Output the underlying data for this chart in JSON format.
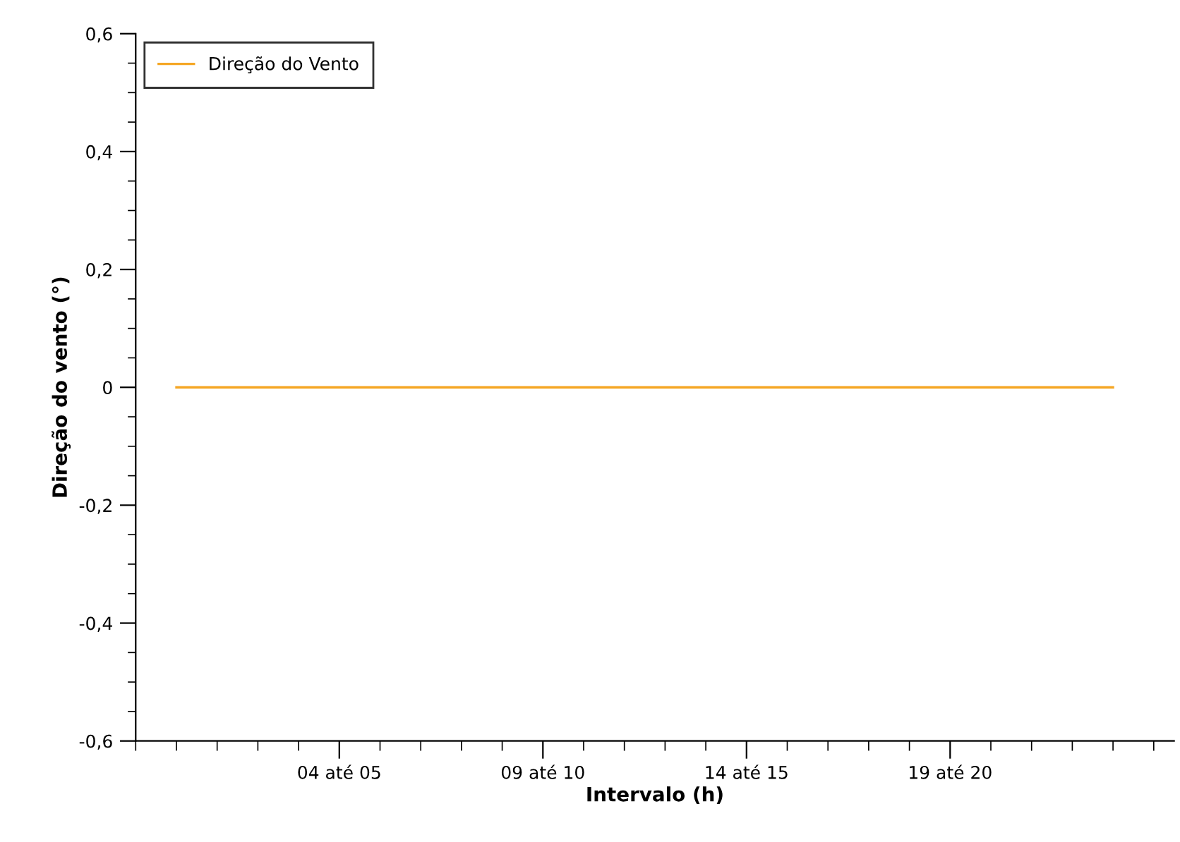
{
  "chart_data": {
    "type": "line",
    "xlabel": "Intervalo (h)",
    "ylabel": "Direção do vento (°)",
    "categories": [
      null,
      null,
      null,
      null,
      "04 até 05",
      null,
      null,
      null,
      null,
      "09 até 10",
      null,
      null,
      null,
      null,
      "14 até 15",
      null,
      null,
      null,
      null,
      "19 até 20",
      null,
      null,
      null,
      null
    ],
    "series": [
      {
        "name": "Direção do Vento",
        "color": "#f5a623",
        "values": [
          0,
          0,
          0,
          0,
          0,
          0,
          0,
          0,
          0,
          0,
          0,
          0,
          0,
          0,
          0,
          0,
          0,
          0,
          0,
          0,
          0,
          0,
          0,
          0
        ]
      }
    ],
    "ylim": [
      -0.6,
      0.6
    ],
    "yticks": [
      {
        "value": -0.6,
        "label": "-0,6"
      },
      {
        "value": -0.4,
        "label": "-0,4"
      },
      {
        "value": -0.2,
        "label": "-0,2"
      },
      {
        "value": 0,
        "label": "0"
      },
      {
        "value": 0.2,
        "label": "0,2"
      },
      {
        "value": 0.4,
        "label": "0,4"
      },
      {
        "value": 0.6,
        "label": "0,6"
      }
    ],
    "grid": false,
    "legend": "top left",
    "marker": "none",
    "line_style": "solid"
  }
}
